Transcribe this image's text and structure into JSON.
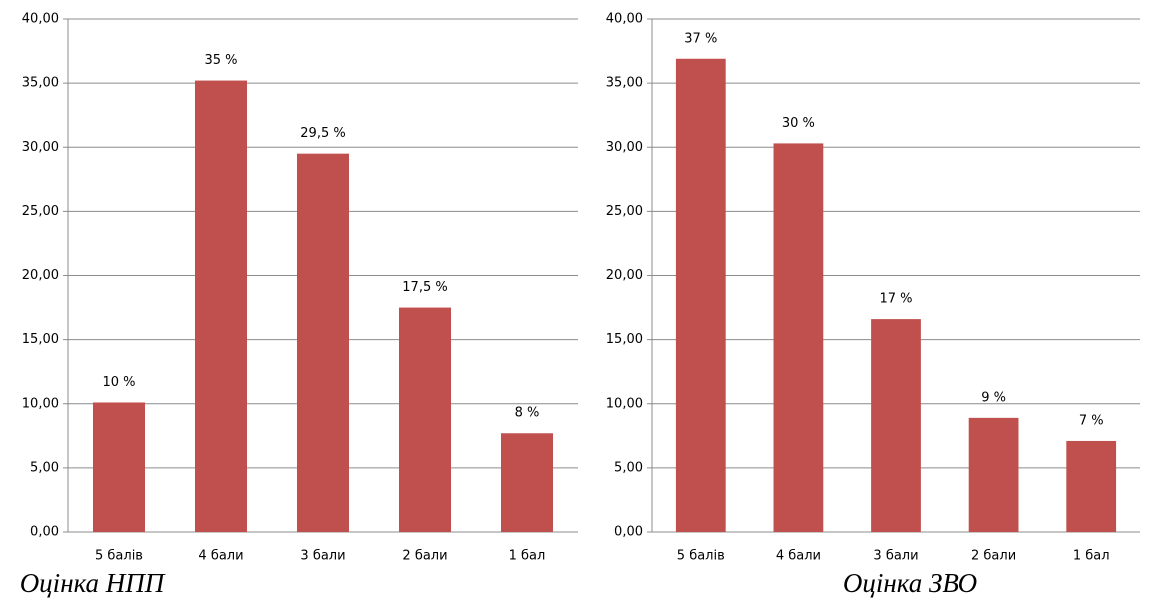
{
  "chart_data": [
    {
      "type": "bar",
      "title": "Оцінка НПП",
      "categories": [
        "5 балів",
        "4 бали",
        "3 бали",
        "2 бали",
        "1 бал"
      ],
      "values": [
        10.1,
        35.2,
        29.5,
        17.5,
        7.7
      ],
      "value_labels": [
        "10 %",
        "35 %",
        "29,5 %",
        "17,5 %",
        "8 %"
      ],
      "color": "#c0504d",
      "ylim": [
        0,
        40
      ],
      "yticks": [
        {
          "value": 0,
          "label": "0,00"
        },
        {
          "value": 5,
          "label": "5,00"
        },
        {
          "value": 10,
          "label": "10,00"
        },
        {
          "value": 15,
          "label": "15,00"
        },
        {
          "value": 20,
          "label": "20,00"
        },
        {
          "value": 25,
          "label": "25,00"
        },
        {
          "value": 30,
          "label": "30,00"
        },
        {
          "value": 35,
          "label": "35,00"
        },
        {
          "value": 40,
          "label": "40,00"
        }
      ],
      "grid": true
    },
    {
      "type": "bar",
      "title": "Оцінка ЗВО",
      "categories": [
        "5 балів",
        "4 бали",
        "3 бали",
        "2 бали",
        "1 бал"
      ],
      "values": [
        36.9,
        30.3,
        16.6,
        8.9,
        7.1
      ],
      "value_labels": [
        "37 %",
        "30 %",
        "17 %",
        "9 %",
        "7 %"
      ],
      "color": "#c0504d",
      "ylim": [
        0,
        40
      ],
      "yticks": [
        {
          "value": 0,
          "label": "0,00"
        },
        {
          "value": 5,
          "label": "5,00"
        },
        {
          "value": 10,
          "label": "10,00"
        },
        {
          "value": 15,
          "label": "15,00"
        },
        {
          "value": 20,
          "label": "20,00"
        },
        {
          "value": 25,
          "label": "25,00"
        },
        {
          "value": 30,
          "label": "30,00"
        },
        {
          "value": 35,
          "label": "35,00"
        },
        {
          "value": 40,
          "label": "40,00"
        }
      ],
      "grid": true
    }
  ]
}
